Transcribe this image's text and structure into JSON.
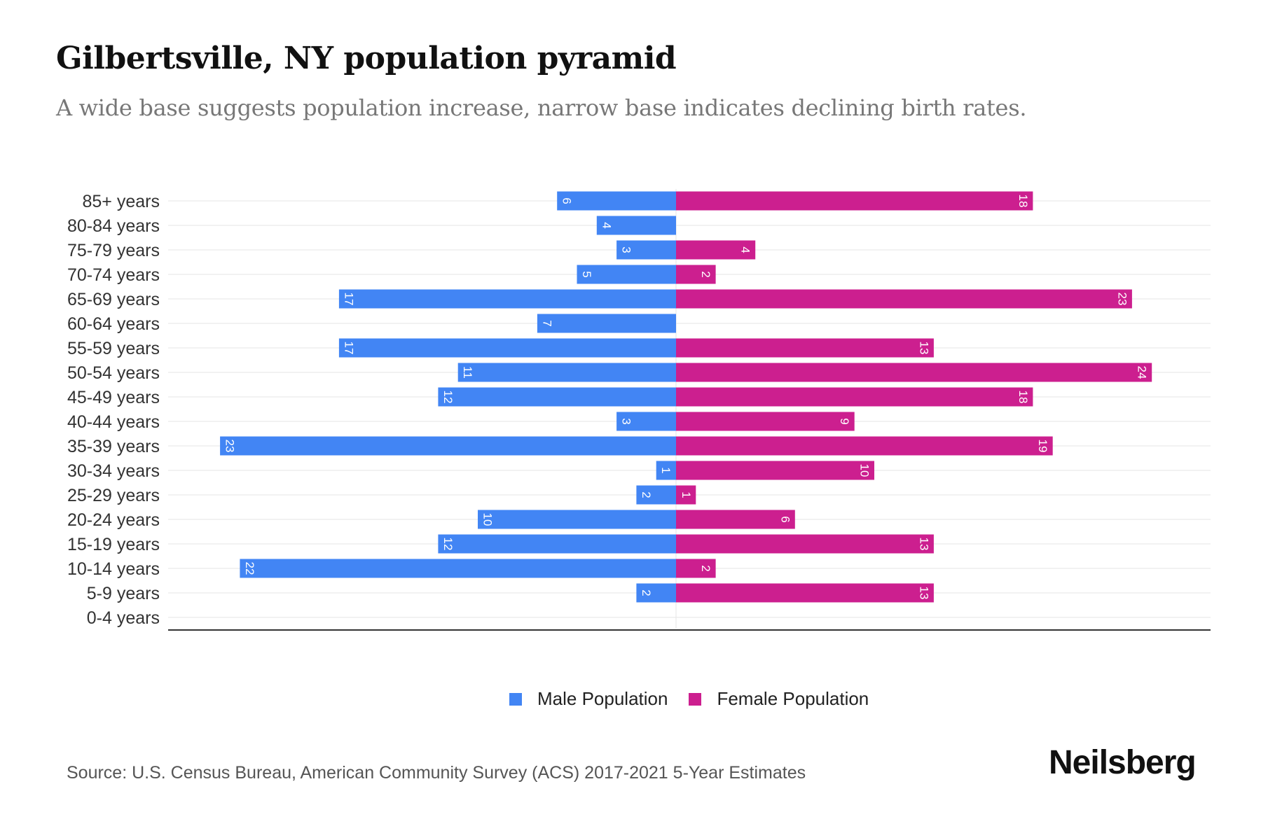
{
  "header": {
    "title": "Gilbertsville, NY population pyramid",
    "subtitle": "A wide base suggests population increase, narrow base indicates declining birth rates."
  },
  "legend": {
    "male_label": "Male Population",
    "female_label": "Female Population"
  },
  "footer": {
    "source": "Source: U.S. Census Bureau, American Community Survey (ACS) 2017-2021 5-Year Estimates",
    "brand": "Neilsberg"
  },
  "colors": {
    "male": "#4285f4",
    "female": "#cc1f8f",
    "grid": "#eeeeee",
    "axis": "#333333"
  },
  "chart_data": {
    "type": "bar",
    "orientation": "horizontal-pyramid",
    "title": "Gilbertsville, NY population pyramid",
    "subtitle": "A wide base suggests population increase, narrow base indicates declining birth rates.",
    "xlabel": "",
    "ylabel": "",
    "categories": [
      "85+ years",
      "80-84 years",
      "75-79 years",
      "70-74 years",
      "65-69 years",
      "60-64 years",
      "55-59 years",
      "50-54 years",
      "45-49 years",
      "40-44 years",
      "35-39 years",
      "30-34 years",
      "25-29 years",
      "20-24 years",
      "15-19 years",
      "10-14 years",
      "5-9 years",
      "0-4 years"
    ],
    "series": [
      {
        "name": "Male Population",
        "side": "left",
        "values": [
          6,
          4,
          3,
          5,
          17,
          7,
          17,
          11,
          12,
          3,
          23,
          1,
          2,
          10,
          12,
          22,
          2,
          0
        ]
      },
      {
        "name": "Female Population",
        "side": "right",
        "values": [
          18,
          0,
          4,
          2,
          23,
          0,
          13,
          24,
          18,
          9,
          19,
          10,
          1,
          6,
          13,
          2,
          13,
          0
        ]
      }
    ],
    "xlim": [
      -26,
      26
    ],
    "grid": true,
    "data_labels": true,
    "legend_position": "bottom-center"
  }
}
